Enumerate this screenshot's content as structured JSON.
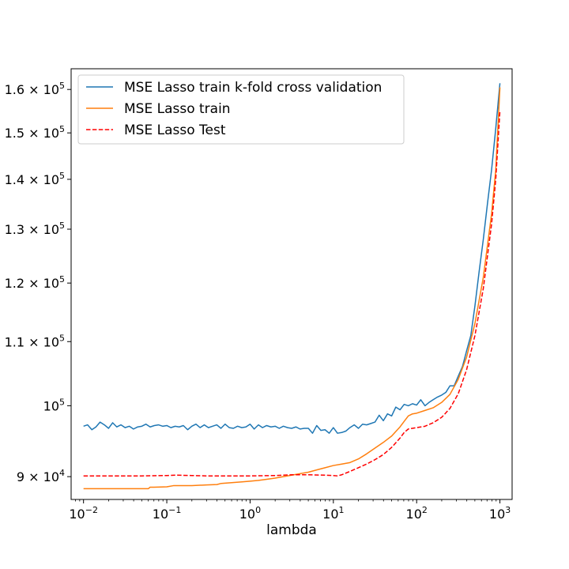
{
  "chart_data": {
    "type": "line",
    "title": "",
    "xlabel": "lambda",
    "ylabel": "",
    "x_scale": "log",
    "y_scale": "log",
    "xlim": [
      0.0071,
      1400
    ],
    "ylim": [
      87000,
      165000
    ],
    "grid": false,
    "legend_position": "top-left",
    "x_ticks": [
      {
        "value": 0.01,
        "base": "10",
        "exp": "−2"
      },
      {
        "value": 0.1,
        "base": "10",
        "exp": "−1"
      },
      {
        "value": 1,
        "base": "10",
        "exp": "0"
      },
      {
        "value": 10,
        "base": "10",
        "exp": "1"
      },
      {
        "value": 100,
        "base": "10",
        "exp": "2"
      },
      {
        "value": 1000,
        "base": "10",
        "exp": "3"
      }
    ],
    "y_ticks": [
      {
        "value": 90000,
        "mant": "9 × ",
        "base": "10",
        "exp": "4"
      },
      {
        "value": 100000,
        "mant": "",
        "base": "10",
        "exp": "5"
      },
      {
        "value": 110000,
        "mant": "1.1 × ",
        "base": "10",
        "exp": "5"
      },
      {
        "value": 120000,
        "mant": "1.2 × ",
        "base": "10",
        "exp": "5"
      },
      {
        "value": 130000,
        "mant": "1.3 × ",
        "base": "10",
        "exp": "5"
      },
      {
        "value": 140000,
        "mant": "1.4 × ",
        "base": "10",
        "exp": "5"
      },
      {
        "value": 150000,
        "mant": "1.5 × ",
        "base": "10",
        "exp": "5"
      },
      {
        "value": 160000,
        "mant": "1.6 × ",
        "base": "10",
        "exp": "5"
      }
    ],
    "series": [
      {
        "name": "MSE Lasso train k-fold cross validation",
        "color": "#1f77b4",
        "dash": "solid",
        "points": [
          [
            0.01,
            97000
          ],
          [
            0.0112,
            97200
          ],
          [
            0.0126,
            96500
          ],
          [
            0.0141,
            96900
          ],
          [
            0.0158,
            97600
          ],
          [
            0.0178,
            97200
          ],
          [
            0.02,
            96700
          ],
          [
            0.0224,
            97500
          ],
          [
            0.0251,
            96900
          ],
          [
            0.0282,
            97200
          ],
          [
            0.0316,
            96800
          ],
          [
            0.0355,
            97000
          ],
          [
            0.0398,
            96600
          ],
          [
            0.0447,
            96900
          ],
          [
            0.0501,
            97000
          ],
          [
            0.0562,
            97300
          ],
          [
            0.0631,
            96900
          ],
          [
            0.0708,
            97100
          ],
          [
            0.0794,
            97200
          ],
          [
            0.0891,
            97000
          ],
          [
            0.1,
            97100
          ],
          [
            0.112,
            96800
          ],
          [
            0.126,
            97000
          ],
          [
            0.141,
            96900
          ],
          [
            0.158,
            97100
          ],
          [
            0.178,
            96500
          ],
          [
            0.2,
            97000
          ],
          [
            0.224,
            97300
          ],
          [
            0.251,
            96800
          ],
          [
            0.282,
            97200
          ],
          [
            0.316,
            96800
          ],
          [
            0.355,
            97000
          ],
          [
            0.398,
            97200
          ],
          [
            0.447,
            96700
          ],
          [
            0.501,
            97300
          ],
          [
            0.562,
            96800
          ],
          [
            0.631,
            96700
          ],
          [
            0.708,
            97000
          ],
          [
            0.794,
            96800
          ],
          [
            0.891,
            96900
          ],
          [
            1.0,
            97300
          ],
          [
            1.12,
            96600
          ],
          [
            1.26,
            97200
          ],
          [
            1.41,
            96800
          ],
          [
            1.58,
            97100
          ],
          [
            1.78,
            96900
          ],
          [
            2.0,
            97000
          ],
          [
            2.24,
            96700
          ],
          [
            2.51,
            97000
          ],
          [
            2.82,
            96800
          ],
          [
            3.16,
            96700
          ],
          [
            3.55,
            96900
          ],
          [
            3.98,
            96600
          ],
          [
            4.47,
            96700
          ],
          [
            5.01,
            96700
          ],
          [
            5.62,
            96000
          ],
          [
            6.31,
            97100
          ],
          [
            7.08,
            96400
          ],
          [
            7.94,
            96500
          ],
          [
            8.91,
            96000
          ],
          [
            10.0,
            96800
          ],
          [
            11.2,
            96000
          ],
          [
            12.6,
            96100
          ],
          [
            14.1,
            96300
          ],
          [
            15.8,
            96800
          ],
          [
            17.8,
            97200
          ],
          [
            20.0,
            96700
          ],
          [
            22.4,
            97300
          ],
          [
            25.1,
            97200
          ],
          [
            28.2,
            97400
          ],
          [
            31.6,
            97600
          ],
          [
            35.5,
            98600
          ],
          [
            39.8,
            97800
          ],
          [
            44.7,
            98800
          ],
          [
            50.1,
            98500
          ],
          [
            56.2,
            99800
          ],
          [
            63.1,
            99400
          ],
          [
            70.8,
            100200
          ],
          [
            79.4,
            100000
          ],
          [
            89.1,
            100300
          ],
          [
            100,
            100100
          ],
          [
            112,
            100900
          ],
          [
            126,
            100000
          ],
          [
            141,
            100500
          ],
          [
            158,
            100900
          ],
          [
            178,
            101300
          ],
          [
            200,
            101600
          ],
          [
            224,
            102000
          ],
          [
            251,
            103000
          ],
          [
            282,
            103000
          ],
          [
            316,
            104500
          ],
          [
            355,
            106000
          ],
          [
            398,
            108500
          ],
          [
            447,
            111000
          ],
          [
            501,
            116000
          ],
          [
            562,
            122000
          ],
          [
            631,
            128000
          ],
          [
            708,
            135000
          ],
          [
            794,
            142000
          ],
          [
            891,
            151000
          ],
          [
            1000,
            161500
          ]
        ]
      },
      {
        "name": "MSE Lasso train",
        "color": "#ff7f0e",
        "dash": "solid",
        "points": [
          [
            0.01,
            88400
          ],
          [
            0.02,
            88400
          ],
          [
            0.03,
            88400
          ],
          [
            0.05,
            88400
          ],
          [
            0.06,
            88400
          ],
          [
            0.063,
            88600
          ],
          [
            0.07,
            88600
          ],
          [
            0.1,
            88650
          ],
          [
            0.12,
            88800
          ],
          [
            0.2,
            88800
          ],
          [
            0.3,
            88900
          ],
          [
            0.4,
            88950
          ],
          [
            0.45,
            89100
          ],
          [
            0.6,
            89200
          ],
          [
            0.8,
            89300
          ],
          [
            1.0,
            89400
          ],
          [
            1.26,
            89500
          ],
          [
            1.58,
            89650
          ],
          [
            2.0,
            89800
          ],
          [
            2.51,
            90000
          ],
          [
            3.16,
            90200
          ],
          [
            3.98,
            90400
          ],
          [
            5.01,
            90600
          ],
          [
            6.31,
            90900
          ],
          [
            7.94,
            91200
          ],
          [
            10.0,
            91500
          ],
          [
            12.6,
            91700
          ],
          [
            15.8,
            91900
          ],
          [
            20.0,
            92400
          ],
          [
            25.1,
            93100
          ],
          [
            31.6,
            93900
          ],
          [
            39.8,
            94700
          ],
          [
            50.1,
            95600
          ],
          [
            63.1,
            96900
          ],
          [
            70.8,
            97700
          ],
          [
            79.4,
            98500
          ],
          [
            89.1,
            98800
          ],
          [
            100,
            98900
          ],
          [
            126,
            99300
          ],
          [
            158,
            99700
          ],
          [
            200,
            100500
          ],
          [
            251,
            101700
          ],
          [
            316,
            104000
          ],
          [
            398,
            107500
          ],
          [
            501,
            113000
          ],
          [
            631,
            121000
          ],
          [
            794,
            133000
          ],
          [
            891,
            142000
          ],
          [
            1000,
            160500
          ]
        ]
      },
      {
        "name": "MSE Lasso Test",
        "color": "#ff0000",
        "dash": "dashed",
        "points": [
          [
            0.01,
            90100
          ],
          [
            0.05,
            90100
          ],
          [
            0.1,
            90150
          ],
          [
            0.13,
            90200
          ],
          [
            0.2,
            90150
          ],
          [
            0.3,
            90100
          ],
          [
            0.5,
            90100
          ],
          [
            1.0,
            90100
          ],
          [
            2.0,
            90150
          ],
          [
            3.16,
            90250
          ],
          [
            5.01,
            90250
          ],
          [
            7.94,
            90200
          ],
          [
            10.0,
            90150
          ],
          [
            11.2,
            90100
          ],
          [
            12.6,
            90250
          ],
          [
            15.8,
            90700
          ],
          [
            20.0,
            91200
          ],
          [
            25.1,
            91700
          ],
          [
            31.6,
            92300
          ],
          [
            39.8,
            93000
          ],
          [
            50.1,
            94000
          ],
          [
            63.1,
            95300
          ],
          [
            70.8,
            96100
          ],
          [
            79.4,
            96600
          ],
          [
            89.1,
            96700
          ],
          [
            100,
            96800
          ],
          [
            126,
            97000
          ],
          [
            158,
            97500
          ],
          [
            200,
            98300
          ],
          [
            251,
            99600
          ],
          [
            316,
            101800
          ],
          [
            398,
            105500
          ],
          [
            501,
            111000
          ],
          [
            631,
            119000
          ],
          [
            794,
            131000
          ],
          [
            891,
            140000
          ],
          [
            1000,
            155000
          ]
        ]
      }
    ]
  }
}
